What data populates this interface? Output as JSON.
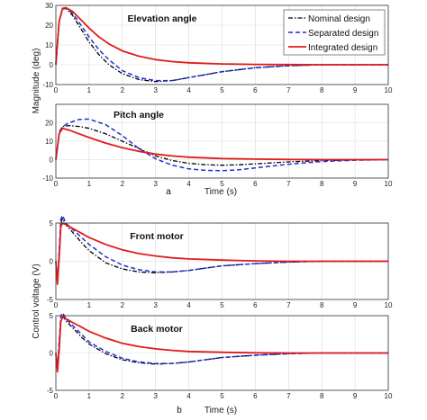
{
  "figure": {
    "panel_a_letter": "a",
    "panel_b_letter": "b",
    "ylabel_a": "Magnitude (deg)",
    "ylabel_b": "Control voltage (V)",
    "xlabel": "Time (s)"
  },
  "legend": {
    "placement": "top-right of first plot",
    "items": [
      {
        "name": "Nominal design",
        "color": "#000000",
        "style": "dash-dot"
      },
      {
        "name": "Separated design",
        "color": "#1f2fd6",
        "style": "dashed"
      },
      {
        "name": "Integrated design",
        "color": "#e01b1b",
        "style": "solid"
      }
    ]
  },
  "chart_data": [
    {
      "type": "line",
      "title": "Elevation angle",
      "xlabel": "",
      "ylabel": "Magnitude (deg)",
      "xlim": [
        0,
        10
      ],
      "ylim": [
        -10,
        30
      ],
      "xticks": [
        0,
        1,
        2,
        3,
        4,
        5,
        6,
        7,
        8,
        9,
        10
      ],
      "yticks": [
        -10,
        0,
        10,
        20,
        30
      ],
      "grid": true,
      "series": [
        {
          "name": "Nominal design",
          "x": [
            0,
            0.1,
            0.2,
            0.3,
            0.5,
            0.8,
            1,
            1.3,
            1.6,
            2,
            2.5,
            3,
            3.5,
            4,
            4.5,
            5,
            6,
            7,
            8,
            9,
            10
          ],
          "y": [
            0,
            22,
            28,
            28.5,
            25,
            17,
            11.5,
            5,
            0,
            -4.5,
            -7.5,
            -8.5,
            -8,
            -6.5,
            -5,
            -3.5,
            -1.5,
            -0.5,
            0,
            0,
            0
          ]
        },
        {
          "name": "Separated design",
          "x": [
            0,
            0.1,
            0.2,
            0.3,
            0.5,
            0.8,
            1,
            1.3,
            1.6,
            2,
            2.5,
            3,
            3.5,
            4,
            4.5,
            5,
            6,
            7,
            8,
            9,
            10
          ],
          "y": [
            0,
            22,
            28,
            28.8,
            26,
            19,
            14,
            7.5,
            2.5,
            -3,
            -6.5,
            -8,
            -8,
            -6.5,
            -5,
            -3.5,
            -1.5,
            -0.5,
            0,
            0,
            0
          ]
        },
        {
          "name": "Integrated design",
          "x": [
            0,
            0.1,
            0.2,
            0.3,
            0.5,
            0.8,
            1,
            1.3,
            1.6,
            2,
            2.5,
            3,
            3.5,
            4,
            5,
            6,
            7,
            8,
            9,
            10
          ],
          "y": [
            0,
            22,
            28.5,
            28.8,
            27,
            22,
            18.5,
            14,
            10.5,
            7,
            4.3,
            2.6,
            1.6,
            1,
            0.4,
            0.2,
            0.1,
            0,
            0,
            0
          ]
        }
      ]
    },
    {
      "type": "line",
      "title": "Pitch angle",
      "xlabel": "Time (s)",
      "ylabel": "",
      "xlim": [
        0,
        10
      ],
      "ylim": [
        -10,
        30
      ],
      "xticks": [
        0,
        1,
        2,
        3,
        4,
        5,
        6,
        7,
        8,
        9,
        10
      ],
      "yticks": [
        -10,
        0,
        10,
        20
      ],
      "grid": true,
      "series": [
        {
          "name": "Nominal design",
          "x": [
            0,
            0.1,
            0.2,
            0.4,
            0.7,
            1,
            1.5,
            2,
            2.5,
            3,
            3.5,
            4,
            4.5,
            5,
            5.5,
            6,
            7,
            8,
            9,
            10
          ],
          "y": [
            0,
            15,
            18,
            18.5,
            18,
            17,
            14,
            10,
            6,
            2,
            -0.5,
            -2,
            -2.8,
            -3,
            -2.8,
            -2.3,
            -1.2,
            -0.5,
            -0.2,
            0
          ]
        },
        {
          "name": "Separated design",
          "x": [
            0,
            0.1,
            0.2,
            0.4,
            0.7,
            1,
            1.5,
            2,
            2.5,
            3,
            3.5,
            4,
            4.5,
            5,
            5.5,
            6,
            7,
            8,
            9,
            10
          ],
          "y": [
            0,
            14,
            18,
            20,
            21.8,
            22,
            19,
            13,
            6,
            0.5,
            -3,
            -5,
            -5.8,
            -6,
            -5.5,
            -4.5,
            -2.5,
            -1,
            -0.3,
            0
          ]
        },
        {
          "name": "Integrated design",
          "x": [
            0,
            0.1,
            0.2,
            0.4,
            0.7,
            1,
            1.5,
            2,
            2.5,
            3,
            3.5,
            4,
            5,
            6,
            7,
            8,
            9,
            10
          ],
          "y": [
            0,
            14,
            17,
            16,
            14,
            12,
            9,
            6.5,
            4.5,
            3,
            2,
            1.3,
            0.6,
            0.3,
            0.1,
            0,
            0,
            0
          ]
        }
      ]
    },
    {
      "type": "line",
      "title": "Front motor",
      "xlabel": "",
      "ylabel": "Control voltage (V)",
      "xlim": [
        0,
        10
      ],
      "ylim": [
        -5,
        5
      ],
      "xticks": [
        0,
        1,
        2,
        3,
        4,
        5,
        6,
        7,
        8,
        9,
        10
      ],
      "yticks": [
        -5,
        0,
        5
      ],
      "grid": true,
      "series": [
        {
          "name": "Nominal design",
          "x": [
            0,
            0.05,
            0.1,
            0.15,
            0.2,
            0.3,
            0.5,
            0.8,
            1,
            1.5,
            2,
            2.5,
            3,
            3.5,
            4,
            4.5,
            5,
            6,
            7,
            8,
            9,
            10
          ],
          "y": [
            0,
            -3,
            1,
            5,
            5.6,
            4.8,
            3.8,
            2.3,
            1.4,
            -0.2,
            -1,
            -1.4,
            -1.5,
            -1.4,
            -1.2,
            -0.9,
            -0.6,
            -0.3,
            -0.1,
            0,
            0,
            0
          ]
        },
        {
          "name": "Separated design",
          "x": [
            0,
            0.05,
            0.1,
            0.15,
            0.2,
            0.3,
            0.5,
            0.8,
            1,
            1.5,
            2,
            2.5,
            3,
            3.5,
            4,
            4.5,
            5,
            6,
            7,
            8,
            9,
            10
          ],
          "y": [
            0,
            -2.5,
            1.5,
            5.5,
            6,
            5,
            4.2,
            3,
            2.2,
            0.6,
            -0.5,
            -1.1,
            -1.4,
            -1.4,
            -1.2,
            -0.9,
            -0.6,
            -0.3,
            -0.1,
            0,
            0,
            0
          ]
        },
        {
          "name": "Integrated design",
          "x": [
            0,
            0.05,
            0.1,
            0.15,
            0.2,
            0.3,
            0.5,
            0.8,
            1,
            1.5,
            2,
            2.5,
            3,
            3.5,
            4,
            5,
            6,
            7,
            8,
            9,
            10
          ],
          "y": [
            0,
            -3,
            0.5,
            4.5,
            5,
            4.8,
            4.3,
            3.6,
            3.1,
            2.2,
            1.5,
            1,
            0.7,
            0.45,
            0.3,
            0.15,
            0.05,
            0,
            0,
            0,
            0
          ]
        }
      ]
    },
    {
      "type": "line",
      "title": "Back motor",
      "xlabel": "Time (s)",
      "ylabel": "",
      "xlim": [
        0,
        10
      ],
      "ylim": [
        -5,
        5
      ],
      "xticks": [
        0,
        1,
        2,
        3,
        4,
        5,
        6,
        7,
        8,
        9,
        10
      ],
      "yticks": [
        -5,
        0,
        5
      ],
      "grid": true,
      "series": [
        {
          "name": "Nominal design",
          "x": [
            0,
            0.05,
            0.1,
            0.15,
            0.2,
            0.3,
            0.5,
            0.8,
            1,
            1.5,
            2,
            2.5,
            3,
            3.5,
            4,
            4.5,
            5,
            6,
            7,
            8,
            9,
            10
          ],
          "y": [
            0,
            -2.5,
            1,
            4.5,
            5,
            4.3,
            3.4,
            2,
            1.2,
            -0.1,
            -0.9,
            -1.3,
            -1.5,
            -1.4,
            -1.2,
            -0.9,
            -0.6,
            -0.3,
            -0.1,
            0,
            0,
            0
          ]
        },
        {
          "name": "Separated design",
          "x": [
            0,
            0.05,
            0.1,
            0.15,
            0.2,
            0.3,
            0.5,
            0.8,
            1,
            1.5,
            2,
            2.5,
            3,
            3.5,
            4,
            4.5,
            5,
            6,
            7,
            8,
            9,
            10
          ],
          "y": [
            0,
            -2,
            1.5,
            5,
            5.4,
            4.6,
            3.7,
            2.4,
            1.5,
            0.2,
            -0.7,
            -1.2,
            -1.4,
            -1.4,
            -1.2,
            -0.9,
            -0.6,
            -0.3,
            -0.1,
            0,
            0,
            0
          ]
        },
        {
          "name": "Integrated design",
          "x": [
            0,
            0.05,
            0.1,
            0.15,
            0.2,
            0.3,
            0.5,
            0.8,
            1,
            1.5,
            2,
            2.5,
            3,
            3.5,
            4,
            5,
            6,
            7,
            8,
            9,
            10
          ],
          "y": [
            0,
            -2.5,
            0.5,
            4.2,
            4.8,
            4.6,
            4.1,
            3.4,
            2.9,
            2,
            1.3,
            0.85,
            0.55,
            0.35,
            0.2,
            0.1,
            0.03,
            0,
            0,
            0,
            0
          ]
        }
      ]
    }
  ]
}
